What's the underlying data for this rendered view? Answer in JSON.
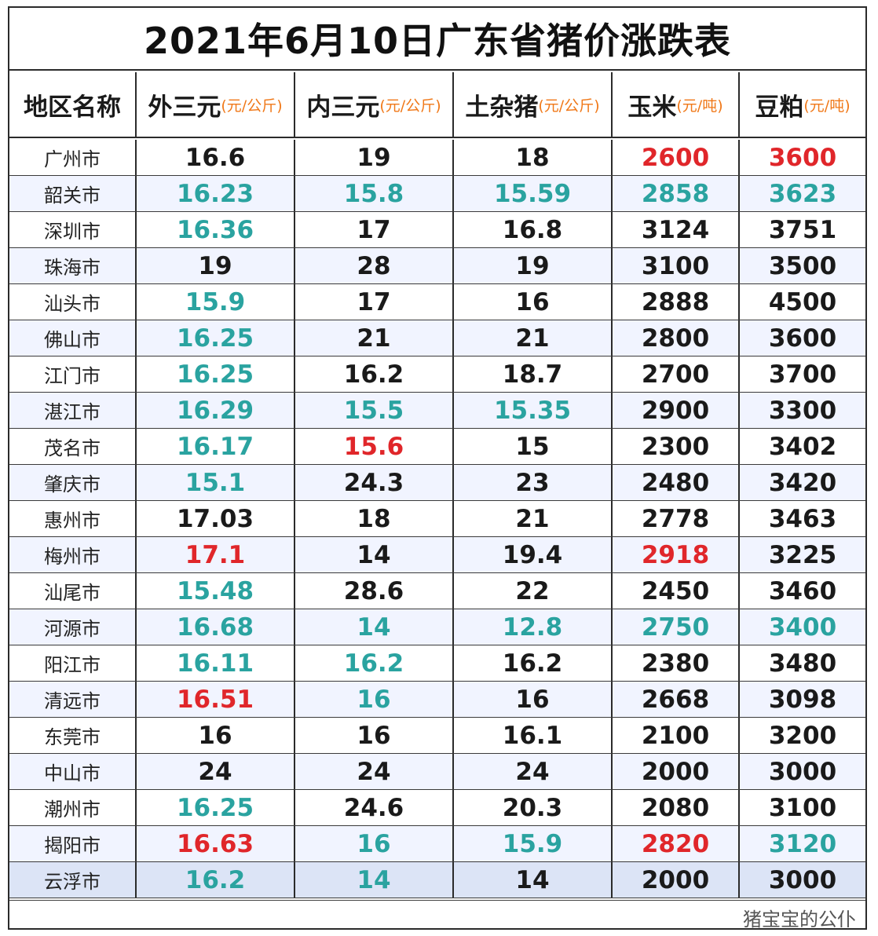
{
  "title": "2021年6月10日广东省猪价涨跌表",
  "colors": {
    "up": "#e0262a",
    "down": "#2aa3a0",
    "flat": "#1a1a1a",
    "unit": "#f07818"
  },
  "headers": [
    {
      "name": "地区名称",
      "unit": ""
    },
    {
      "name": "外三元",
      "unit": "(元/公斤)"
    },
    {
      "name": "内三元",
      "unit": "(元/公斤)"
    },
    {
      "name": "土杂猪",
      "unit": "(元/公斤)"
    },
    {
      "name": "玉米",
      "unit": "(元/吨)"
    },
    {
      "name": "豆粕",
      "unit": "(元/吨)"
    }
  ],
  "rows": [
    {
      "city": "广州市",
      "cells": [
        [
          "16.6",
          "flat"
        ],
        [
          "19",
          "flat"
        ],
        [
          "18",
          "flat"
        ],
        [
          "2600",
          "up"
        ],
        [
          "3600",
          "up"
        ]
      ]
    },
    {
      "city": "韶关市",
      "cells": [
        [
          "16.23",
          "down"
        ],
        [
          "15.8",
          "down"
        ],
        [
          "15.59",
          "down"
        ],
        [
          "2858",
          "down"
        ],
        [
          "3623",
          "down"
        ]
      ]
    },
    {
      "city": "深圳市",
      "cells": [
        [
          "16.36",
          "down"
        ],
        [
          "17",
          "flat"
        ],
        [
          "16.8",
          "flat"
        ],
        [
          "3124",
          "flat"
        ],
        [
          "3751",
          "flat"
        ]
      ]
    },
    {
      "city": "珠海市",
      "cells": [
        [
          "19",
          "flat"
        ],
        [
          "28",
          "flat"
        ],
        [
          "19",
          "flat"
        ],
        [
          "3100",
          "flat"
        ],
        [
          "3500",
          "flat"
        ]
      ]
    },
    {
      "city": "汕头市",
      "cells": [
        [
          "15.9",
          "down"
        ],
        [
          "17",
          "flat"
        ],
        [
          "16",
          "flat"
        ],
        [
          "2888",
          "flat"
        ],
        [
          "4500",
          "flat"
        ]
      ]
    },
    {
      "city": "佛山市",
      "cells": [
        [
          "16.25",
          "down"
        ],
        [
          "21",
          "flat"
        ],
        [
          "21",
          "flat"
        ],
        [
          "2800",
          "flat"
        ],
        [
          "3600",
          "flat"
        ]
      ]
    },
    {
      "city": "江门市",
      "cells": [
        [
          "16.25",
          "down"
        ],
        [
          "16.2",
          "flat"
        ],
        [
          "18.7",
          "flat"
        ],
        [
          "2700",
          "flat"
        ],
        [
          "3700",
          "flat"
        ]
      ]
    },
    {
      "city": "湛江市",
      "cells": [
        [
          "16.29",
          "down"
        ],
        [
          "15.5",
          "down"
        ],
        [
          "15.35",
          "down"
        ],
        [
          "2900",
          "flat"
        ],
        [
          "3300",
          "flat"
        ]
      ]
    },
    {
      "city": "茂名市",
      "cells": [
        [
          "16.17",
          "down"
        ],
        [
          "15.6",
          "up"
        ],
        [
          "15",
          "flat"
        ],
        [
          "2300",
          "flat"
        ],
        [
          "3402",
          "flat"
        ]
      ]
    },
    {
      "city": "肇庆市",
      "cells": [
        [
          "15.1",
          "down"
        ],
        [
          "24.3",
          "flat"
        ],
        [
          "23",
          "flat"
        ],
        [
          "2480",
          "flat"
        ],
        [
          "3420",
          "flat"
        ]
      ]
    },
    {
      "city": "惠州市",
      "cells": [
        [
          "17.03",
          "flat"
        ],
        [
          "18",
          "flat"
        ],
        [
          "21",
          "flat"
        ],
        [
          "2778",
          "flat"
        ],
        [
          "3463",
          "flat"
        ]
      ]
    },
    {
      "city": "梅州市",
      "cells": [
        [
          "17.1",
          "up"
        ],
        [
          "14",
          "flat"
        ],
        [
          "19.4",
          "flat"
        ],
        [
          "2918",
          "up"
        ],
        [
          "3225",
          "flat"
        ]
      ]
    },
    {
      "city": "汕尾市",
      "cells": [
        [
          "15.48",
          "down"
        ],
        [
          "28.6",
          "flat"
        ],
        [
          "22",
          "flat"
        ],
        [
          "2450",
          "flat"
        ],
        [
          "3460",
          "flat"
        ]
      ]
    },
    {
      "city": "河源市",
      "cells": [
        [
          "16.68",
          "down"
        ],
        [
          "14",
          "down"
        ],
        [
          "12.8",
          "down"
        ],
        [
          "2750",
          "down"
        ],
        [
          "3400",
          "down"
        ]
      ]
    },
    {
      "city": "阳江市",
      "cells": [
        [
          "16.11",
          "down"
        ],
        [
          "16.2",
          "down"
        ],
        [
          "16.2",
          "flat"
        ],
        [
          "2380",
          "flat"
        ],
        [
          "3480",
          "flat"
        ]
      ]
    },
    {
      "city": "清远市",
      "cells": [
        [
          "16.51",
          "up"
        ],
        [
          "16",
          "down"
        ],
        [
          "16",
          "flat"
        ],
        [
          "2668",
          "flat"
        ],
        [
          "3098",
          "flat"
        ]
      ]
    },
    {
      "city": "东莞市",
      "cells": [
        [
          "16",
          "flat"
        ],
        [
          "16",
          "flat"
        ],
        [
          "16.1",
          "flat"
        ],
        [
          "2100",
          "flat"
        ],
        [
          "3200",
          "flat"
        ]
      ]
    },
    {
      "city": "中山市",
      "cells": [
        [
          "24",
          "flat"
        ],
        [
          "24",
          "flat"
        ],
        [
          "24",
          "flat"
        ],
        [
          "2000",
          "flat"
        ],
        [
          "3000",
          "flat"
        ]
      ]
    },
    {
      "city": "潮州市",
      "cells": [
        [
          "16.25",
          "down"
        ],
        [
          "24.6",
          "flat"
        ],
        [
          "20.3",
          "flat"
        ],
        [
          "2080",
          "flat"
        ],
        [
          "3100",
          "flat"
        ]
      ]
    },
    {
      "city": "揭阳市",
      "cells": [
        [
          "16.63",
          "up"
        ],
        [
          "16",
          "down"
        ],
        [
          "15.9",
          "down"
        ],
        [
          "2820",
          "up"
        ],
        [
          "3120",
          "down"
        ]
      ]
    },
    {
      "city": "云浮市",
      "cells": [
        [
          "16.2",
          "down"
        ],
        [
          "14",
          "down"
        ],
        [
          "14",
          "flat"
        ],
        [
          "2000",
          "flat"
        ],
        [
          "3000",
          "flat"
        ]
      ]
    }
  ],
  "watermark": "猪宝宝的公仆"
}
